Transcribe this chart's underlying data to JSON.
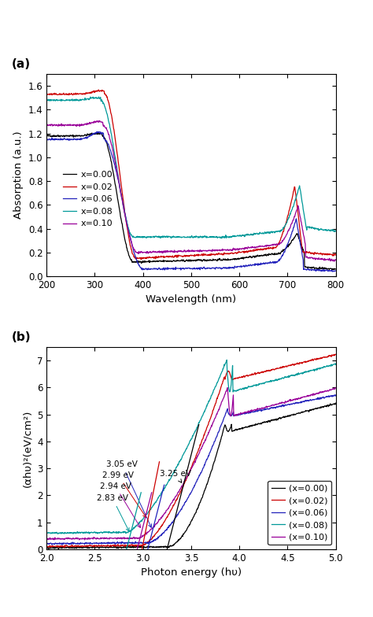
{
  "panel_a": {
    "title": "(a)",
    "xlabel": "Wavelength (nm)",
    "ylabel": "Absorption (a.u.)",
    "xlim": [
      200,
      800
    ],
    "ylim": [
      0.0,
      1.7
    ],
    "yticks": [
      0.0,
      0.2,
      0.4,
      0.6,
      0.8,
      1.0,
      1.2,
      1.4,
      1.6
    ],
    "xticks": [
      200,
      300,
      400,
      500,
      600,
      700,
      800
    ],
    "colors": [
      "#000000",
      "#cc0000",
      "#2222bb",
      "#009999",
      "#990099"
    ],
    "labels": [
      "x=0.00",
      "x=0.02",
      "x=0.06",
      "x=0.08",
      "x=0.10"
    ]
  },
  "panel_b": {
    "title": "(b)",
    "xlabel": "Photon energy (hυ)",
    "ylabel": "(αhυ)²(eV/cm²)",
    "xlim": [
      2.0,
      5.0
    ],
    "ylim": [
      0.0,
      7.5
    ],
    "yticks": [
      0,
      1,
      2,
      3,
      4,
      5,
      6,
      7
    ],
    "xticks": [
      2.0,
      2.5,
      3.0,
      3.5,
      4.0,
      4.5,
      5.0
    ],
    "colors": [
      "#000000",
      "#cc0000",
      "#2222bb",
      "#009999",
      "#990099"
    ],
    "labels": [
      "(x=0.00)",
      "(x=0.02)",
      "(x=0.06)",
      "(x=0.08)",
      "(x=0.10)"
    ]
  }
}
